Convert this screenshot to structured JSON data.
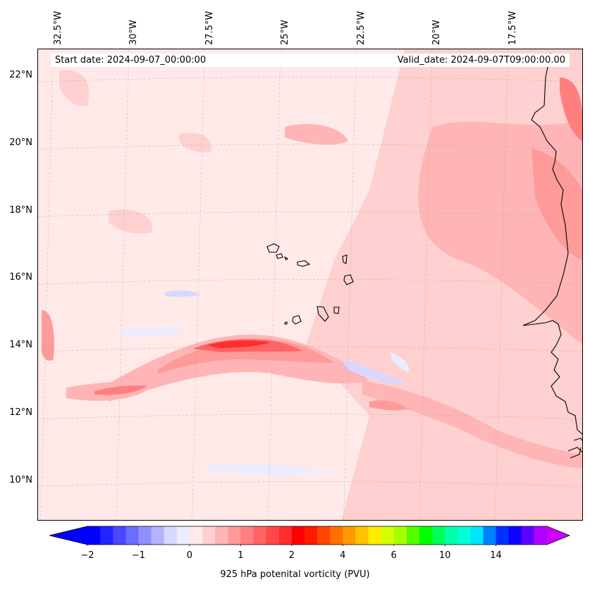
{
  "header": {
    "start_date": "Start date: 2024-09-07_00:00:00",
    "valid_date": "Valid_date: 2024-09-07T09:00:00.00"
  },
  "map": {
    "extent_lon": [
      -33.0,
      -15.0
    ],
    "extent_lat": [
      8.8,
      22.8
    ],
    "lon_labels": [
      {
        "value": -32.5,
        "text": "32.5°W"
      },
      {
        "value": -30.0,
        "text": "30°W"
      },
      {
        "value": -27.5,
        "text": "27.5°W"
      },
      {
        "value": -25.0,
        "text": "25°W"
      },
      {
        "value": -22.5,
        "text": "22.5°W"
      },
      {
        "value": -20.0,
        "text": "20°W"
      },
      {
        "value": -17.5,
        "text": "17.5°W"
      }
    ],
    "lat_labels": [
      {
        "value": 22,
        "text": "22°N"
      },
      {
        "value": 20,
        "text": "20°N"
      },
      {
        "value": 18,
        "text": "18°N"
      },
      {
        "value": 16,
        "text": "16°N"
      },
      {
        "value": 14,
        "text": "14°N"
      },
      {
        "value": 12,
        "text": "12°N"
      },
      {
        "value": 10,
        "text": "10°N"
      }
    ],
    "gridlines": true,
    "background_color": "#ffe9e9",
    "coastline_color": "#000000"
  },
  "colorbar": {
    "label": "925 hPa potenital vorticity (PVU)",
    "ticks": [
      {
        "value": -2,
        "text": "−2"
      },
      {
        "value": -1,
        "text": "−1"
      },
      {
        "value": 0,
        "text": "0"
      },
      {
        "value": 1,
        "text": "1"
      },
      {
        "value": 2,
        "text": "2"
      },
      {
        "value": 4,
        "text": "4"
      },
      {
        "value": 6,
        "text": "6"
      },
      {
        "value": 10,
        "text": "10"
      },
      {
        "value": 14,
        "text": "14"
      }
    ],
    "colors": [
      "#0000ff",
      "#2323ff",
      "#4848ff",
      "#6c6cff",
      "#8f8fff",
      "#b3b3ff",
      "#d8d8ff",
      "#ececff",
      "#ffe9e9",
      "#ffd0d0",
      "#ffb5b5",
      "#ff9a9a",
      "#ff7f7f",
      "#ff6363",
      "#ff4848",
      "#ff2d2d",
      "#ff0000",
      "#ff1a00",
      "#ff4500",
      "#ff7000",
      "#ff9900",
      "#ffc200",
      "#ffeb00",
      "#d4ff00",
      "#a8ff00",
      "#54ff00",
      "#00ff00",
      "#00ff54",
      "#00ffaa",
      "#00ffd4",
      "#00e5ff",
      "#0080ff",
      "#0030ff",
      "#1000ff",
      "#6000ff",
      "#b000ff"
    ],
    "extend_low_color": "#0000ff",
    "extend_high_color": "#cc00ff"
  }
}
